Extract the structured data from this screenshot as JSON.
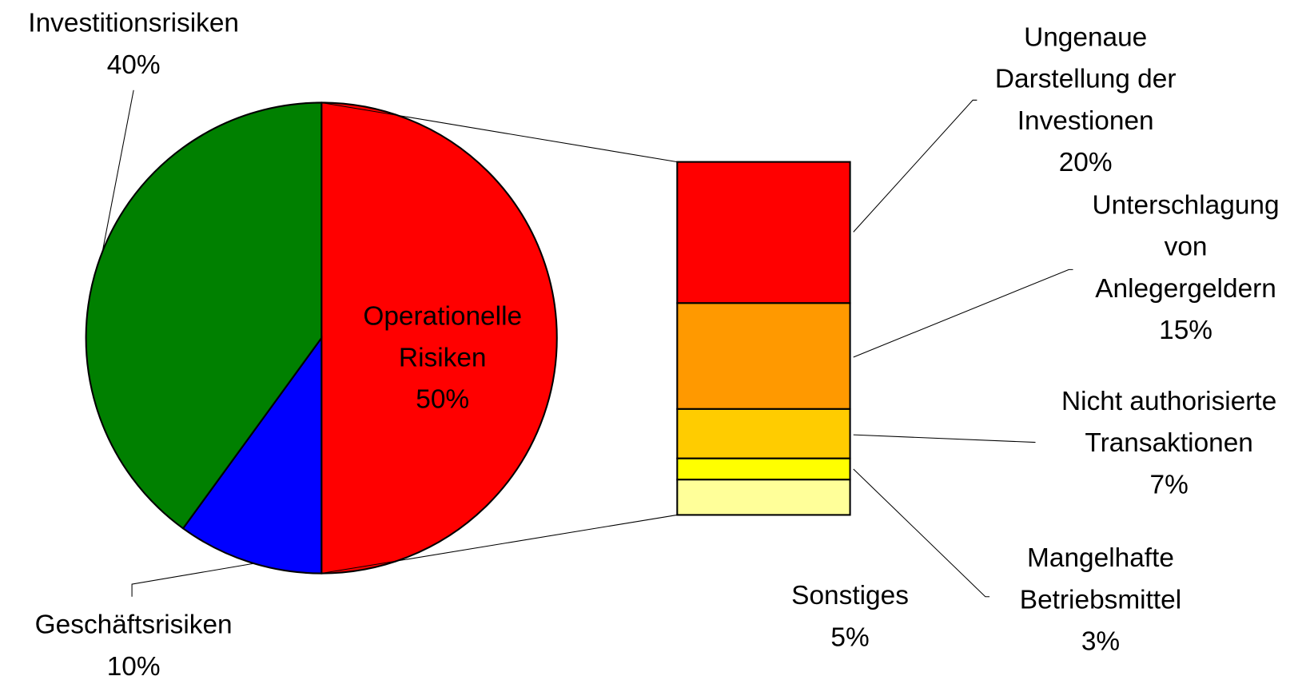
{
  "chart_data": {
    "type": "pie",
    "categories": [
      "Operationelle\nRisiken",
      "Geschäftsrisiken",
      "Investitionsrisiken"
    ],
    "values": [
      50,
      10,
      40
    ],
    "value_labels": [
      "50%",
      "10%",
      "40%"
    ],
    "colors": [
      "#ff0000",
      "#0000ff",
      "#008000"
    ],
    "breakdown": {
      "categories": [
        "Ungenaue\nDarstellung der\nInvestionen",
        "Unterschlagung\nvon\nAnlegergeldern",
        "Nicht authorisierte\nTransaktionen",
        "Mangelhafte\nBetriebsmittel",
        "Sonstiges"
      ],
      "values": [
        20,
        15,
        7,
        3,
        5
      ],
      "value_labels": [
        "20%",
        "15%",
        "7%",
        "3%",
        "5%"
      ],
      "colors": [
        "#ff0000",
        "#ff9900",
        "#ffcc00",
        "#ffff00",
        "#ffff99"
      ]
    }
  }
}
